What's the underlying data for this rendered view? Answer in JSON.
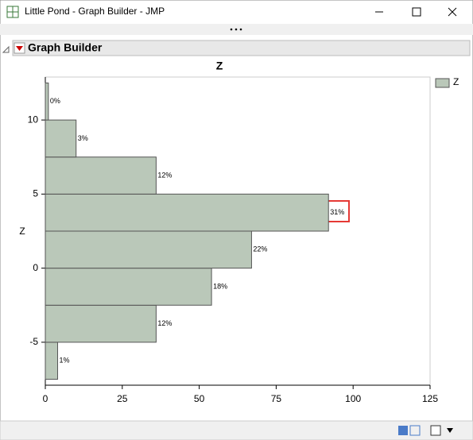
{
  "window": {
    "title": "Little Pond - Graph Builder - JMP"
  },
  "outline": {
    "title": "Graph Builder"
  },
  "chart_data": {
    "type": "histogram",
    "orientation": "horizontal",
    "title": "Z",
    "y_label": "Z",
    "legend_label": "Z",
    "bins": [
      -7.5,
      -5,
      -2.5,
      0,
      2.5,
      5,
      7.5,
      10,
      12.5
    ],
    "values": [
      4,
      36,
      54,
      67,
      92,
      36,
      10,
      1
    ],
    "value_labels": [
      "1%",
      "12%",
      "18%",
      "22%",
      "31%",
      "12%",
      "3%",
      "0%"
    ],
    "color": "#bac8b9",
    "xlim": [
      0,
      125
    ],
    "xticks": [
      0,
      25,
      50,
      75,
      100,
      125
    ],
    "ylim": [
      -7.9,
      12.9
    ],
    "yticks": [
      -5,
      0,
      5,
      10
    ],
    "legend": "right"
  }
}
